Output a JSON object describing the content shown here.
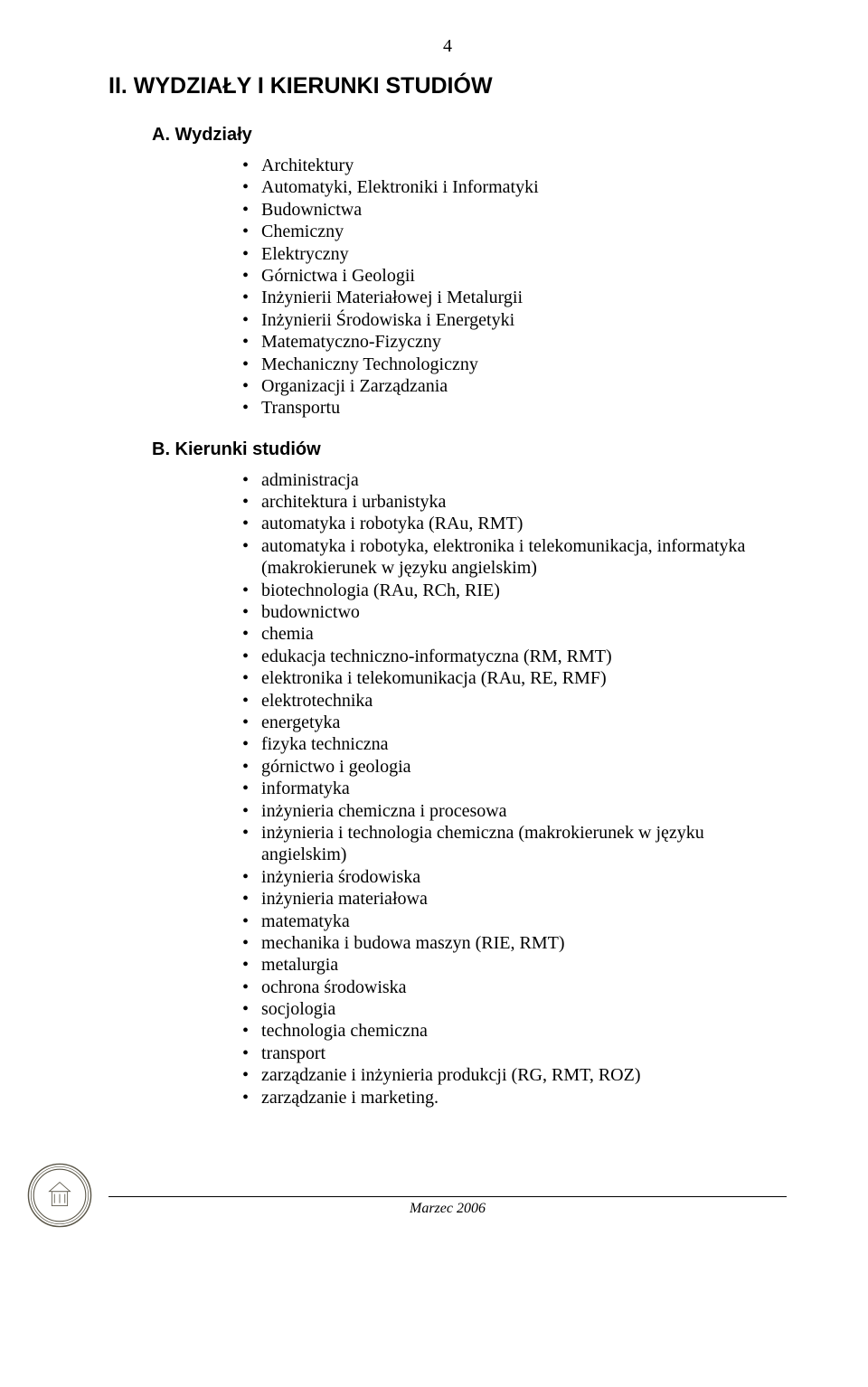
{
  "pageNumber": "4",
  "sectionHeading": "II. WYDZIAŁY I KIERUNKI STUDIÓW",
  "subsectionA": {
    "heading": "A. Wydziały",
    "items": [
      "Architektury",
      "Automatyki, Elektroniki i Informatyki",
      "Budownictwa",
      "Chemiczny",
      "Elektryczny",
      "Górnictwa i Geologii",
      "Inżynierii Materiałowej i Metalurgii",
      "Inżynierii Środowiska i Energetyki",
      "Matematyczno-Fizyczny",
      "Mechaniczny Technologiczny",
      "Organizacji i Zarządzania",
      "Transportu"
    ]
  },
  "subsectionB": {
    "heading": "B. Kierunki studiów",
    "items": [
      "administracja",
      "architektura i urbanistyka",
      "automatyka i robotyka (RAu, RMT)",
      "automatyka i robotyka, elektronika i telekomunikacja, informatyka (makrokierunek w języku angielskim)",
      "biotechnologia (RAu, RCh, RIE)",
      "budownictwo",
      "chemia",
      "edukacja techniczno-informatyczna (RM, RMT)",
      "elektronika i telekomunikacja (RAu, RE, RMF)",
      "elektrotechnika",
      "energetyka",
      "fizyka techniczna",
      "górnictwo i geologia",
      "informatyka",
      "inżynieria chemiczna i procesowa",
      "inżynieria i technologia chemiczna (makrokierunek w języku angielskim)",
      "inżynieria środowiska",
      "inżynieria materiałowa",
      "matematyka",
      "mechanika i budowa maszyn (RIE, RMT)",
      "metalurgia",
      "ochrona środowiska",
      "socjologia",
      "technologia chemiczna",
      "transport",
      "zarządzanie i inżynieria produkcji (RG, RMT, ROZ)",
      "zarządzanie i marketing."
    ]
  },
  "footer": {
    "text": "Marzec 2006"
  },
  "colors": {
    "text": "#000000",
    "background": "#ffffff",
    "rule": "#000000",
    "sealStroke": "#5a5648",
    "sealFill": "#ffffff"
  }
}
